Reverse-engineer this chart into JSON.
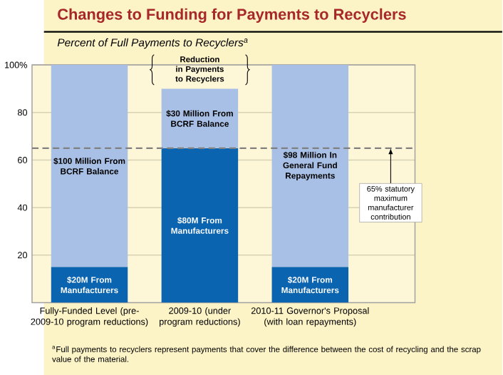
{
  "chart_data": {
    "type": "bar",
    "title": "Changes to Funding for Payments to Recyclers",
    "subtitle": "Percent of Full Payments to Recyclers$^{a}$",
    "categories": [
      "Fully-Funded Level (pre-2009-10 program reductions)",
      "2009-10 (under program reductions)",
      "2010-11 Governor's Proposal (with loan repayments)"
    ],
    "stacked": true,
    "series": [
      {
        "color": "#0a64b0",
        "values": [
          15,
          65,
          15
        ]
      },
      {
        "color": "#a9c0e6",
        "values": [
          85,
          25,
          85
        ]
      }
    ],
    "ylim": [
      0,
      100
    ],
    "yticks": [
      20,
      40,
      60,
      80,
      {
        "value": 100,
        "label": "100%"
      }
    ],
    "grid": "y",
    "ref_lines": [
      {
        "axis": "y",
        "value": 65,
        "label": "65% statutory maximum manufacturer contribution",
        "color": "#808080",
        "line_style": "dashed"
      }
    ],
    "annotations": [
      "$20M From Manufacturers",
      "$100 Million From BCRF Balance",
      "$80M From Manufacturers",
      "$30 Million From BCRF Balance",
      "$20M From Manufacturers",
      "$98 Million In General Fund Repayments",
      "Reduction in Payments to Recyclers",
      "$^{a}$Full payments to recyclers represent payments that cover the difference between the cost of recycling and the scrap value of the material."
    ]
  }
}
